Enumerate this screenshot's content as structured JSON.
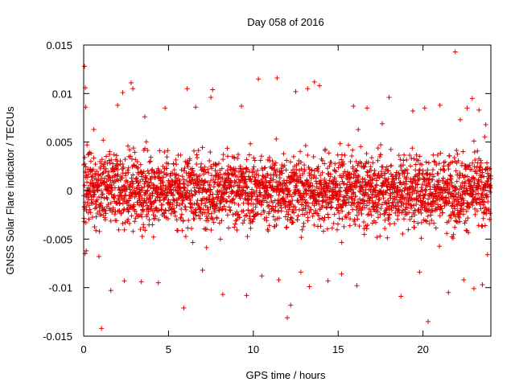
{
  "chart_data": {
    "type": "scatter",
    "title": "Day 058 of 2016",
    "xlabel": "GPS time / hours",
    "ylabel": "GNSS Solar Flare indicator / TECUs",
    "xlim": [
      0,
      24
    ],
    "ylim": [
      -0.015,
      0.015
    ],
    "x_ticks": [
      0,
      5,
      10,
      15,
      20
    ],
    "x_tick_labels": [
      "0",
      "5",
      "10",
      "15",
      "20"
    ],
    "y_ticks": [
      -0.015,
      -0.01,
      -0.005,
      0,
      0.005,
      0.01,
      0.015
    ],
    "y_tick_labels": [
      "-0.015",
      "-0.01",
      "-0.005",
      "0",
      "0.005",
      "0.01",
      "0.015"
    ],
    "marker": "plus",
    "color": "#e00000",
    "grid": false,
    "legend": "none",
    "series": [
      {
        "points": [
          [
            0.05,
            0.0128
          ],
          [
            0.1,
            0.0106
          ],
          [
            0.12,
            0.0086
          ],
          [
            0.15,
            -0.0062
          ],
          [
            0.2,
            0.0047
          ],
          [
            0.3,
            0.0038
          ],
          [
            0.4,
            0.0022
          ],
          [
            0.6,
            0.0063
          ],
          [
            0.9,
            -0.0068
          ],
          [
            1.05,
            -0.0142
          ],
          [
            1.15,
            0.0052
          ],
          [
            1.6,
            -0.0103
          ],
          [
            2.0,
            0.0088
          ],
          [
            2.3,
            0.0101
          ],
          [
            2.4,
            -0.0093
          ],
          [
            2.8,
            0.0111
          ],
          [
            2.9,
            0.0105
          ],
          [
            3.4,
            -0.0094
          ],
          [
            3.6,
            0.0076
          ],
          [
            4.4,
            -0.0095
          ],
          [
            4.8,
            0.0085
          ],
          [
            5.9,
            -0.0121
          ],
          [
            6.1,
            0.0105
          ],
          [
            6.6,
            0.0086
          ],
          [
            7.0,
            -0.0082
          ],
          [
            7.5,
            0.0096
          ],
          [
            7.6,
            0.0104
          ],
          [
            8.2,
            -0.0107
          ],
          [
            9.3,
            0.0087
          ],
          [
            9.6,
            -0.0108
          ],
          [
            10.3,
            0.0115
          ],
          [
            10.5,
            -0.0088
          ],
          [
            11.4,
            0.0116
          ],
          [
            11.5,
            -0.0092
          ],
          [
            12.0,
            -0.0131
          ],
          [
            12.2,
            -0.0118
          ],
          [
            12.5,
            0.0102
          ],
          [
            12.8,
            -0.0084
          ],
          [
            13.2,
            0.0105
          ],
          [
            13.3,
            -0.0099
          ],
          [
            13.6,
            0.0112
          ],
          [
            13.9,
            0.0108
          ],
          [
            14.4,
            -0.0093
          ],
          [
            15.2,
            -0.0086
          ],
          [
            15.9,
            0.0087
          ],
          [
            16.1,
            -0.0098
          ],
          [
            16.7,
            0.0085
          ],
          [
            17.6,
            0.0069
          ],
          [
            18.0,
            0.0096
          ],
          [
            18.7,
            -0.0109
          ],
          [
            19.4,
            0.0082
          ],
          [
            19.8,
            -0.0084
          ],
          [
            20.1,
            0.0085
          ],
          [
            20.3,
            -0.0135
          ],
          [
            21.0,
            0.0088
          ],
          [
            21.5,
            -0.0105
          ],
          [
            21.9,
            0.0143
          ],
          [
            22.2,
            0.0073
          ],
          [
            22.4,
            -0.0092
          ],
          [
            22.6,
            0.0085
          ],
          [
            22.9,
            0.0095
          ],
          [
            23.0,
            -0.0101
          ],
          [
            23.3,
            0.0083
          ],
          [
            23.5,
            -0.0097
          ],
          [
            23.7,
            0.0068
          ],
          [
            23.8,
            -0.0066
          ]
        ]
      }
    ]
  }
}
